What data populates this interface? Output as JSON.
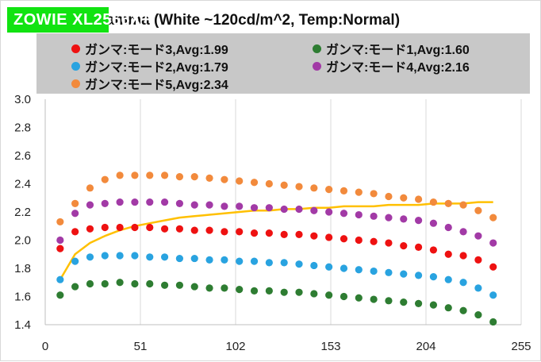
{
  "brand_label": "ZOWIE XL2566X+",
  "chart_data": {
    "type": "scatter",
    "title": "Gamma (White ~120cd/m^2, Temp:Normal)",
    "xlabel": "",
    "ylabel": "",
    "xlim": [
      0,
      255
    ],
    "ylim": [
      1.4,
      3.0
    ],
    "xticks": [
      "0",
      "51",
      "102",
      "153",
      "204",
      "255"
    ],
    "yticks": [
      "1.4",
      "1.6",
      "1.8",
      "2.0",
      "2.2",
      "2.4",
      "2.6",
      "2.8",
      "3.0"
    ],
    "grid": "vertical",
    "legend": "top",
    "x": [
      8,
      16,
      24,
      32,
      40,
      48,
      56,
      64,
      72,
      80,
      88,
      96,
      104,
      112,
      120,
      128,
      136,
      144,
      152,
      160,
      168,
      176,
      184,
      192,
      200,
      208,
      216,
      224,
      232,
      240
    ],
    "series": [
      {
        "name": "ガンマ:モード3,Avg:1.99",
        "color": "#ee1111",
        "values": [
          1.94,
          2.06,
          2.08,
          2.09,
          2.09,
          2.09,
          2.09,
          2.08,
          2.08,
          2.07,
          2.07,
          2.06,
          2.06,
          2.05,
          2.05,
          2.04,
          2.04,
          2.03,
          2.02,
          2.01,
          2.0,
          1.99,
          1.98,
          1.96,
          1.95,
          1.93,
          1.9,
          1.89,
          1.86,
          1.81
        ]
      },
      {
        "name": "ガンマ:モード1,Avg:1.60",
        "color": "#2e7d32",
        "values": [
          1.61,
          1.67,
          1.69,
          1.69,
          1.7,
          1.69,
          1.69,
          1.68,
          1.68,
          1.67,
          1.66,
          1.66,
          1.65,
          1.64,
          1.64,
          1.63,
          1.63,
          1.62,
          1.61,
          1.6,
          1.59,
          1.58,
          1.57,
          1.56,
          1.55,
          1.54,
          1.52,
          1.5,
          1.47,
          1.42
        ]
      },
      {
        "name": "ガンマ:モード2,Avg:1.79",
        "color": "#29a3e0",
        "values": [
          1.72,
          1.85,
          1.88,
          1.89,
          1.89,
          1.89,
          1.88,
          1.88,
          1.87,
          1.87,
          1.86,
          1.86,
          1.85,
          1.85,
          1.84,
          1.84,
          1.83,
          1.82,
          1.81,
          1.8,
          1.79,
          1.78,
          1.77,
          1.76,
          1.75,
          1.74,
          1.72,
          1.7,
          1.66,
          1.61
        ]
      },
      {
        "name": "ガンマ:モード4,Avg:2.16",
        "color": "#a23aa6",
        "values": [
          2.0,
          2.19,
          2.25,
          2.26,
          2.27,
          2.27,
          2.27,
          2.27,
          2.26,
          2.25,
          2.25,
          2.24,
          2.24,
          2.23,
          2.23,
          2.22,
          2.22,
          2.21,
          2.2,
          2.19,
          2.18,
          2.17,
          2.16,
          2.15,
          2.14,
          2.12,
          2.09,
          2.06,
          2.03,
          1.98
        ]
      },
      {
        "name": "ガンマ:モード5,Avg:2.34",
        "color": "#f28a3c",
        "values": [
          2.13,
          2.26,
          2.37,
          2.43,
          2.46,
          2.46,
          2.46,
          2.46,
          2.45,
          2.45,
          2.44,
          2.43,
          2.42,
          2.41,
          2.4,
          2.39,
          2.38,
          2.37,
          2.36,
          2.35,
          2.34,
          2.33,
          2.31,
          2.3,
          2.29,
          2.27,
          2.26,
          2.25,
          2.21,
          2.16
        ]
      }
    ],
    "reference_curve": {
      "color": "#ffc000",
      "x": [
        8,
        16,
        24,
        32,
        40,
        48,
        56,
        64,
        72,
        80,
        88,
        96,
        104,
        112,
        120,
        128,
        136,
        144,
        152,
        160,
        168,
        176,
        184,
        192,
        200,
        208,
        216,
        224,
        232,
        240
      ],
      "values": [
        1.72,
        1.9,
        1.98,
        2.03,
        2.07,
        2.1,
        2.12,
        2.14,
        2.16,
        2.17,
        2.18,
        2.19,
        2.2,
        2.21,
        2.21,
        2.22,
        2.22,
        2.23,
        2.23,
        2.24,
        2.24,
        2.24,
        2.25,
        2.25,
        2.25,
        2.26,
        2.26,
        2.26,
        2.27,
        2.27
      ]
    }
  }
}
